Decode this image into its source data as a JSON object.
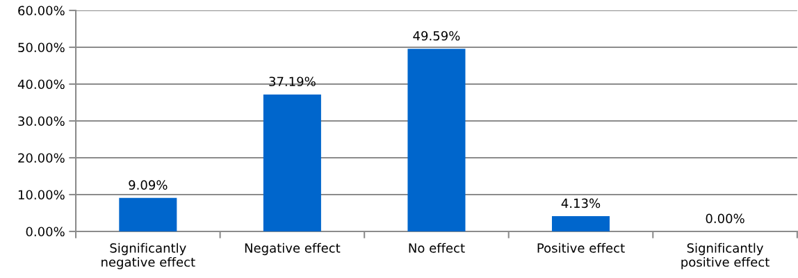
{
  "chart_data": {
    "type": "bar",
    "categories": [
      "Significantly\nnegative effect",
      "Negative effect",
      "No effect",
      "Positive effect",
      "Significantly\npositive effect"
    ],
    "values": [
      9.09,
      37.19,
      49.59,
      4.13,
      0.0
    ],
    "value_labels": [
      "9.09%",
      "37.19%",
      "49.59%",
      "4.13%",
      "0.00%"
    ],
    "color": "#0066cc",
    "ylim": [
      0,
      60
    ],
    "yticks": [
      {
        "value": 0,
        "label": "0.00%"
      },
      {
        "value": 10,
        "label": "10.00%"
      },
      {
        "value": 20,
        "label": "20.00%"
      },
      {
        "value": 30,
        "label": "30.00%"
      },
      {
        "value": 40,
        "label": "40.00%"
      },
      {
        "value": 50,
        "label": "50.00%"
      },
      {
        "value": 60,
        "label": "60.00%"
      }
    ],
    "grid": "y"
  }
}
